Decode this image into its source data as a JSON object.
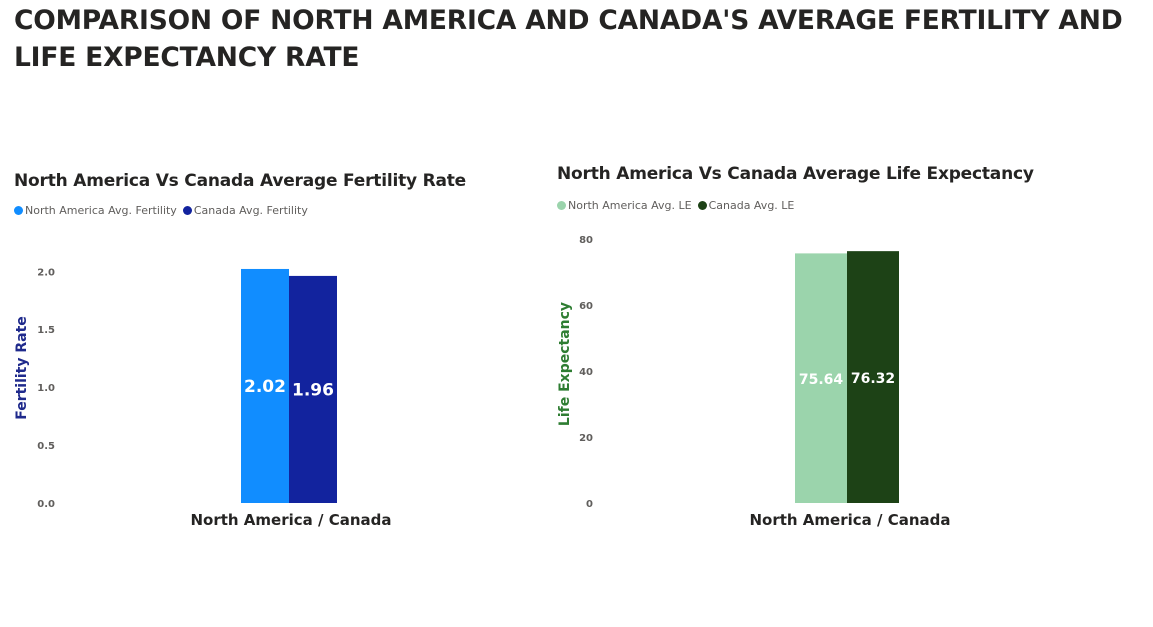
{
  "page": {
    "title": "COMPARISON OF NORTH AMERICA AND CANADA'S AVERAGE FERTILITY AND LIFE EXPECTANCY RATE"
  },
  "chart_data": [
    {
      "type": "bar",
      "title": "North America Vs Canada Average Fertility Rate",
      "categories": [
        "North America / Canada"
      ],
      "xlabel": "North America / Canada",
      "ylabel": "Fertility Rate",
      "ylabel_color": "#1f2a8c",
      "ylim": [
        0,
        2.27
      ],
      "yticks": [
        0.0,
        0.5,
        1.0,
        1.5,
        2.0
      ],
      "ytick_labels": [
        "0.0",
        "0.5",
        "1.0",
        "1.5",
        "2.0"
      ],
      "grid": false,
      "legend_position": "top-left",
      "series": [
        {
          "name": "North America Avg. Fertility",
          "values": [
            2.02
          ],
          "color": "#118dff",
          "label": "2.02"
        },
        {
          "name": "Canada Avg. Fertility",
          "values": [
            1.96
          ],
          "color": "#12239e",
          "label": "1.96"
        }
      ]
    },
    {
      "type": "bar",
      "title": "North America Vs Canada Average Life Expectancy",
      "categories": [
        "North America / Canada"
      ],
      "xlabel": "North America / Canada",
      "ylabel": "Life Expectancy",
      "ylabel_color": "#2e7d32",
      "ylim": [
        0,
        80
      ],
      "yticks": [
        0,
        20,
        40,
        60,
        80
      ],
      "ytick_labels": [
        "0",
        "20",
        "40",
        "60",
        "80"
      ],
      "grid": false,
      "legend_position": "top-left",
      "series": [
        {
          "name": "North America Avg. LE",
          "values": [
            75.64
          ],
          "color": "#9bd4ac",
          "label": "75.64"
        },
        {
          "name": "Canada Avg. LE",
          "values": [
            76.32
          ],
          "color": "#1d4216",
          "label": "76.32"
        }
      ]
    }
  ]
}
